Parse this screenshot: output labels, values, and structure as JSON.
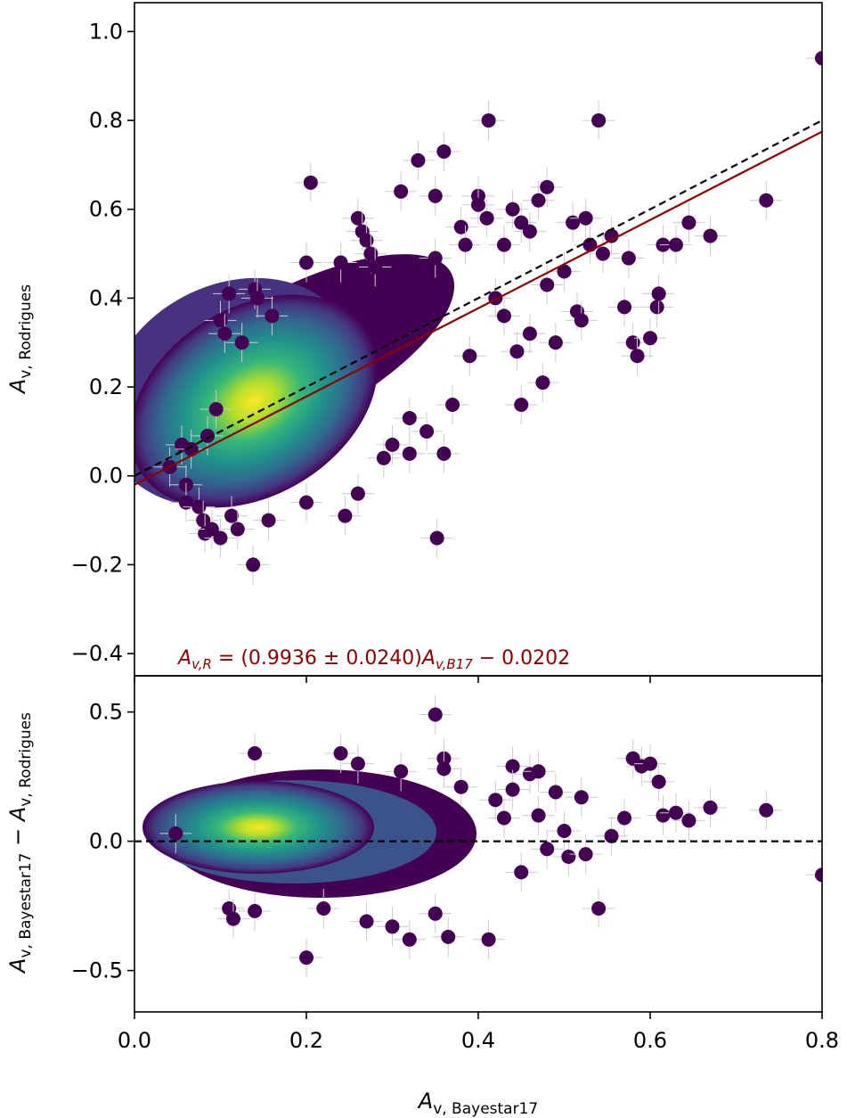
{
  "chart_data": [
    {
      "id": "top",
      "type": "scatter",
      "title": "",
      "xlabel": "",
      "ylabel_main": "A",
      "ylabel_sub": "v, Rodrigues",
      "xlim": [
        0.0,
        0.8
      ],
      "ylim": [
        -0.45,
        1.065
      ],
      "xticks": [
        0.0,
        0.2,
        0.4,
        0.6,
        0.8
      ],
      "yticks": [
        -0.4,
        -0.2,
        0.0,
        0.2,
        0.4,
        0.6,
        0.8,
        1.0
      ],
      "ytick_labels": [
        "−0.4",
        "−0.2",
        "0.0",
        "0.2",
        "0.4",
        "0.6",
        "0.8",
        "1.0"
      ],
      "show_xtick_labels": false,
      "colormap": "viridis (point density)",
      "errorbar_color": "#cccccc",
      "point_color_low_density": "#440154",
      "lines": [
        {
          "name": "one-to-one",
          "style": "dashed",
          "color": "#000000",
          "slope": 1.0,
          "intercept": 0.0
        },
        {
          "name": "linear-fit",
          "style": "solid",
          "color": "#8b0000",
          "slope": 0.9936,
          "intercept": -0.0202
        }
      ],
      "annotation": {
        "lhs_main": "A",
        "lhs_sub": "v,R",
        "middle": " = (0.9936 ± 0.0240)",
        "rhs_main": "A",
        "rhs_sub": "v,B17",
        "tail": " − 0.0202",
        "color": "#8b0000"
      },
      "outliers": [
        [
          0.041,
          0.02
        ],
        [
          0.055,
          0.07
        ],
        [
          0.06,
          -0.02
        ],
        [
          0.06,
          -0.06
        ],
        [
          0.066,
          0.06
        ],
        [
          0.075,
          -0.07
        ],
        [
          0.08,
          -0.1
        ],
        [
          0.082,
          -0.13
        ],
        [
          0.085,
          0.09
        ],
        [
          0.09,
          -0.12
        ],
        [
          0.095,
          0.15
        ],
        [
          0.1,
          -0.14
        ],
        [
          0.1,
          0.35
        ],
        [
          0.105,
          0.32
        ],
        [
          0.11,
          0.41
        ],
        [
          0.113,
          -0.09
        ],
        [
          0.12,
          -0.12
        ],
        [
          0.125,
          0.3
        ],
        [
          0.138,
          -0.2
        ],
        [
          0.14,
          0.42
        ],
        [
          0.143,
          0.4
        ],
        [
          0.156,
          -0.1
        ],
        [
          0.16,
          0.36
        ],
        [
          0.2,
          0.48
        ],
        [
          0.2,
          -0.06
        ],
        [
          0.205,
          0.66
        ],
        [
          0.24,
          0.48
        ],
        [
          0.245,
          -0.09
        ],
        [
          0.26,
          0.58
        ],
        [
          0.26,
          -0.04
        ],
        [
          0.265,
          0.55
        ],
        [
          0.27,
          0.53
        ],
        [
          0.275,
          0.5
        ],
        [
          0.28,
          0.47
        ],
        [
          0.29,
          0.04
        ],
        [
          0.3,
          0.07
        ],
        [
          0.31,
          0.64
        ],
        [
          0.32,
          0.13
        ],
        [
          0.32,
          0.05
        ],
        [
          0.33,
          0.71
        ],
        [
          0.34,
          0.1
        ],
        [
          0.35,
          0.63
        ],
        [
          0.35,
          0.49
        ],
        [
          0.352,
          -0.14
        ],
        [
          0.36,
          0.73
        ],
        [
          0.36,
          0.05
        ],
        [
          0.37,
          0.16
        ],
        [
          0.38,
          0.56
        ],
        [
          0.385,
          0.52
        ],
        [
          0.39,
          0.27
        ],
        [
          0.4,
          0.63
        ],
        [
          0.4,
          0.61
        ],
        [
          0.41,
          0.58
        ],
        [
          0.412,
          0.8
        ],
        [
          0.42,
          0.4
        ],
        [
          0.43,
          0.36
        ],
        [
          0.43,
          0.52
        ],
        [
          0.44,
          0.6
        ],
        [
          0.445,
          0.28
        ],
        [
          0.45,
          0.57
        ],
        [
          0.45,
          0.16
        ],
        [
          0.46,
          0.55
        ],
        [
          0.46,
          0.32
        ],
        [
          0.47,
          0.62
        ],
        [
          0.475,
          0.21
        ],
        [
          0.48,
          0.65
        ],
        [
          0.48,
          0.43
        ],
        [
          0.49,
          0.3
        ],
        [
          0.5,
          0.46
        ],
        [
          0.51,
          0.57
        ],
        [
          0.515,
          0.37
        ],
        [
          0.52,
          0.35
        ],
        [
          0.525,
          0.58
        ],
        [
          0.53,
          0.52
        ],
        [
          0.54,
          0.8
        ],
        [
          0.545,
          0.5
        ],
        [
          0.555,
          0.54
        ],
        [
          0.57,
          0.38
        ],
        [
          0.575,
          0.49
        ],
        [
          0.58,
          0.3
        ],
        [
          0.585,
          0.27
        ],
        [
          0.6,
          0.31
        ],
        [
          0.608,
          0.38
        ],
        [
          0.61,
          0.41
        ],
        [
          0.615,
          0.52
        ],
        [
          0.63,
          0.52
        ],
        [
          0.645,
          0.57
        ],
        [
          0.67,
          0.54
        ],
        [
          0.735,
          0.62
        ],
        [
          0.8,
          0.94
        ]
      ]
    },
    {
      "id": "bottom",
      "type": "scatter",
      "title": "",
      "xlabel_main": "A",
      "xlabel_sub": "v, Bayestar17",
      "ylabel_main": "A",
      "ylabel_sub1": "v, Bayestar17",
      "ylabel_mid": " − ",
      "ylabel_main2": "A",
      "ylabel_sub2": "v, Rodrigues",
      "xlim": [
        0.0,
        0.8
      ],
      "ylim": [
        -0.66,
        0.64
      ],
      "xticks": [
        0.0,
        0.2,
        0.4,
        0.6,
        0.8
      ],
      "xtick_labels": [
        "0.0",
        "0.2",
        "0.4",
        "0.6",
        "0.8"
      ],
      "yticks": [
        -0.5,
        0.0,
        0.5
      ],
      "ytick_labels": [
        "−0.5",
        "0.0",
        "0.5"
      ],
      "colormap": "viridis (point density)",
      "errorbar_color": "#cccccc",
      "point_color_low_density": "#440154",
      "lines": [
        {
          "name": "zero-line",
          "style": "dashed",
          "color": "#000000",
          "y": 0.0
        }
      ],
      "outliers": [
        [
          0.048,
          0.03
        ],
        [
          0.11,
          -0.26
        ],
        [
          0.115,
          -0.3
        ],
        [
          0.14,
          0.34
        ],
        [
          0.14,
          -0.27
        ],
        [
          0.2,
          -0.45
        ],
        [
          0.22,
          -0.26
        ],
        [
          0.24,
          0.34
        ],
        [
          0.26,
          0.3
        ],
        [
          0.27,
          -0.31
        ],
        [
          0.3,
          -0.33
        ],
        [
          0.31,
          0.27
        ],
        [
          0.32,
          -0.38
        ],
        [
          0.35,
          0.49
        ],
        [
          0.35,
          -0.28
        ],
        [
          0.36,
          0.32
        ],
        [
          0.36,
          0.28
        ],
        [
          0.365,
          -0.37
        ],
        [
          0.38,
          0.21
        ],
        [
          0.412,
          -0.38
        ],
        [
          0.42,
          0.16
        ],
        [
          0.43,
          0.09
        ],
        [
          0.44,
          0.29
        ],
        [
          0.44,
          0.2
        ],
        [
          0.45,
          -0.12
        ],
        [
          0.46,
          0.26
        ],
        [
          0.47,
          0.27
        ],
        [
          0.47,
          0.1
        ],
        [
          0.48,
          -0.03
        ],
        [
          0.49,
          0.19
        ],
        [
          0.5,
          0.04
        ],
        [
          0.505,
          -0.06
        ],
        [
          0.52,
          0.17
        ],
        [
          0.525,
          -0.05
        ],
        [
          0.54,
          -0.26
        ],
        [
          0.555,
          0.02
        ],
        [
          0.57,
          0.09
        ],
        [
          0.58,
          0.32
        ],
        [
          0.59,
          0.29
        ],
        [
          0.6,
          0.3
        ],
        [
          0.61,
          0.23
        ],
        [
          0.615,
          0.1
        ],
        [
          0.63,
          0.11
        ],
        [
          0.645,
          0.08
        ],
        [
          0.67,
          0.13
        ],
        [
          0.735,
          0.12
        ],
        [
          0.8,
          -0.13
        ]
      ]
    }
  ]
}
